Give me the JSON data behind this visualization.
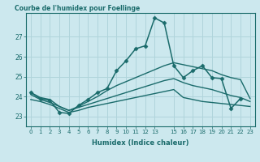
{
  "title": "Courbe de l'humidex pour Foellinge",
  "xlabel": "Humidex (Indice chaleur)",
  "bg_color": "#cce8ee",
  "grid_color": "#b0d4db",
  "line_color": "#1a6b6b",
  "xlim": [
    -0.5,
    23.5
  ],
  "ylim": [
    22.5,
    28.2
  ],
  "yticks": [
    23,
    24,
    25,
    26,
    27
  ],
  "xticks": [
    0,
    1,
    2,
    3,
    4,
    5,
    6,
    7,
    8,
    9,
    10,
    11,
    12,
    13,
    15,
    16,
    17,
    18,
    19,
    20,
    21,
    22,
    23
  ],
  "series": [
    {
      "x": [
        0,
        1,
        2,
        3,
        4,
        5,
        6,
        7,
        8,
        9,
        10,
        11,
        12,
        13,
        14,
        15,
        16,
        17,
        18,
        19,
        20,
        21,
        22,
        23
      ],
      "y": [
        24.2,
        23.9,
        23.8,
        23.2,
        23.15,
        23.55,
        23.85,
        24.2,
        24.4,
        25.3,
        25.8,
        26.4,
        26.55,
        27.95,
        27.7,
        25.55,
        24.95,
        25.3,
        25.55,
        24.95,
        24.9,
        23.4,
        23.9,
        null
      ],
      "has_markers": true,
      "marker": "D",
      "markersize": 2.5,
      "linewidth": 1.1
    },
    {
      "x": [
        0,
        1,
        2,
        3,
        4,
        5,
        6,
        7,
        8,
        9,
        10,
        11,
        12,
        13,
        14,
        15,
        16,
        17,
        18,
        19,
        20,
        21,
        22,
        23
      ],
      "y": [
        24.2,
        23.95,
        23.85,
        23.5,
        23.3,
        23.5,
        23.75,
        24.0,
        24.3,
        24.55,
        24.75,
        24.95,
        25.15,
        25.35,
        25.55,
        25.7,
        25.6,
        25.5,
        25.4,
        25.3,
        25.1,
        24.95,
        24.85,
        23.9
      ],
      "has_markers": false,
      "linewidth": 1.0
    },
    {
      "x": [
        0,
        1,
        2,
        3,
        4,
        5,
        6,
        7,
        8,
        9,
        10,
        11,
        12,
        13,
        14,
        15,
        16,
        17,
        18,
        19,
        20,
        21,
        22,
        23
      ],
      "y": [
        24.1,
        23.85,
        23.7,
        23.5,
        23.3,
        23.45,
        23.6,
        23.75,
        23.9,
        24.05,
        24.2,
        24.35,
        24.5,
        24.65,
        24.8,
        24.9,
        24.7,
        24.55,
        24.45,
        24.35,
        24.2,
        24.05,
        23.95,
        23.75
      ],
      "has_markers": false,
      "linewidth": 1.0
    },
    {
      "x": [
        0,
        1,
        2,
        3,
        4,
        5,
        6,
        7,
        8,
        9,
        10,
        11,
        12,
        13,
        14,
        15,
        16,
        17,
        18,
        19,
        20,
        21,
        22,
        23
      ],
      "y": [
        23.85,
        23.75,
        23.6,
        23.4,
        23.2,
        23.3,
        23.45,
        23.55,
        23.65,
        23.75,
        23.85,
        23.95,
        24.05,
        24.15,
        24.25,
        24.35,
        23.95,
        23.85,
        23.75,
        23.7,
        23.65,
        23.6,
        23.55,
        23.5
      ],
      "has_markers": false,
      "linewidth": 1.0
    }
  ]
}
